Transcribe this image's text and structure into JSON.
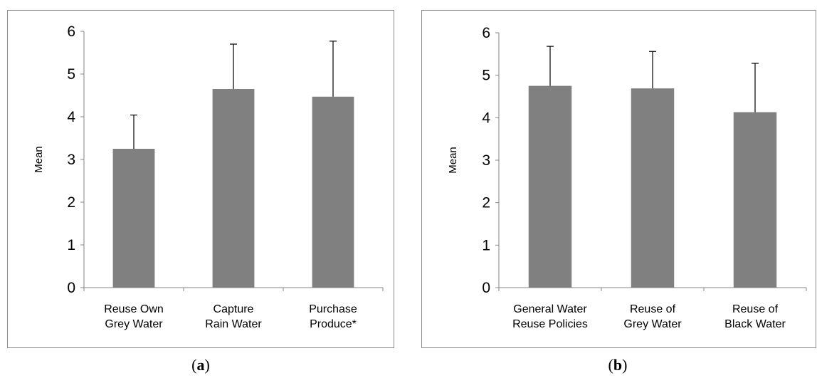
{
  "chart_data": [
    {
      "type": "bar",
      "panel": "a",
      "caption_letter": "a",
      "categories": [
        [
          "Reuse Own",
          "Grey Water"
        ],
        [
          "Capture",
          "Rain Water"
        ],
        [
          "Purchase",
          "Produce*"
        ]
      ],
      "values": [
        3.25,
        4.65,
        4.47
      ],
      "error_upper": [
        0.79,
        1.05,
        1.3
      ],
      "ylabel": "Mean",
      "ylim": [
        0,
        6
      ],
      "yticks": [
        "0",
        "1",
        "2",
        "3",
        "4",
        "5",
        "6"
      ],
      "bar_color": "#808080"
    },
    {
      "type": "bar",
      "panel": "b",
      "caption_letter": "b",
      "categories": [
        [
          "General Water",
          "Reuse Policies"
        ],
        [
          "Reuse of",
          "Grey Water"
        ],
        [
          "Reuse of",
          "Black Water"
        ]
      ],
      "values": [
        4.75,
        4.69,
        4.13
      ],
      "error_upper": [
        0.93,
        0.87,
        1.15
      ],
      "ylabel": "Mean",
      "ylim": [
        0,
        6
      ],
      "yticks": [
        "0",
        "1",
        "2",
        "3",
        "4",
        "5",
        "6"
      ],
      "bar_color": "#808080"
    }
  ]
}
